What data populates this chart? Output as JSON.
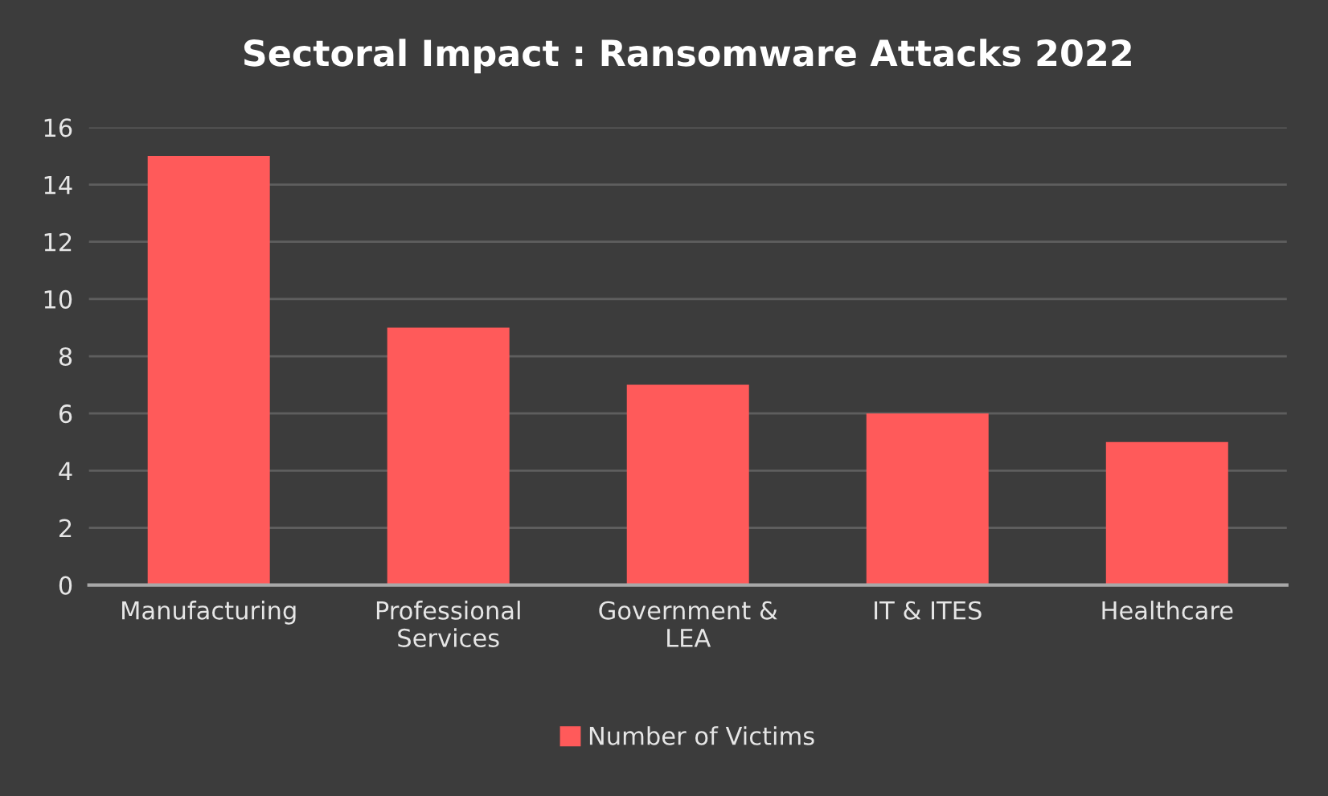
{
  "chart_data": {
    "type": "bar",
    "title": "Sectoral Impact : Ransomware Attacks 2022",
    "categories": [
      "Manufacturing",
      "Professional\nServices",
      "Government &\nLEA",
      "IT & ITES",
      "Healthcare"
    ],
    "series": [
      {
        "name": "Number of Victims",
        "color": "#ff5a5a",
        "values": [
          15,
          9,
          7,
          6,
          5
        ]
      }
    ],
    "ylim": [
      0,
      16
    ],
    "yticks": [
      0,
      2,
      4,
      6,
      8,
      10,
      12,
      14,
      16
    ],
    "grid": "y",
    "legend": "bottom"
  }
}
